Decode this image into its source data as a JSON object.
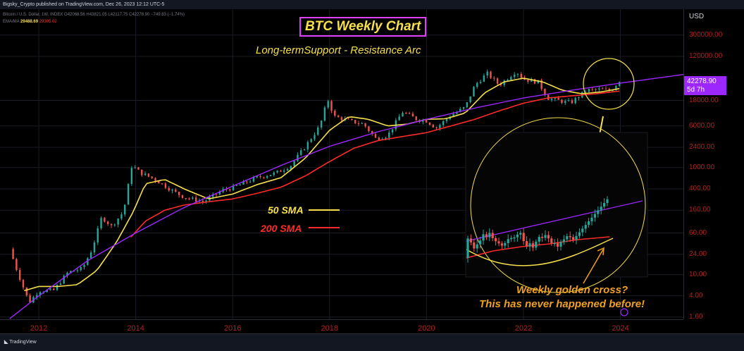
{
  "header": {
    "publish_line": "Bigsky_Crypto published on TradingView.com, Dec 26, 2023 12:12 UTC-5",
    "symbol_line": "Bitcoin / U.S. Dollar, 1W, INDEX  O42068.56  H43821.05  L42117.75  C42278.90  −749.83 (−1.74%)",
    "ema_label": "EMA/MA",
    "ema_value1": "29488.69",
    "ema_value2": "29305.02"
  },
  "axis": {
    "currency_label": "USD",
    "y_ticks": [
      "300000.00",
      "120000.00",
      "18000.00",
      "6000.00",
      "2400.00",
      "1000.00",
      "400.00",
      "160.00",
      "60.00",
      "24.00",
      "10.00",
      "4.00",
      "1.60"
    ],
    "x_ticks": [
      "2012",
      "2014",
      "2016",
      "2018",
      "2020",
      "2022",
      "2024"
    ]
  },
  "price_tag": {
    "price": "42278.90",
    "countdown": "5d 7h"
  },
  "annotations": {
    "title": "BTC Weekly Chart",
    "subtitle": "Long-termSupport - Resistance Arc",
    "sma50_label": "50 SMA",
    "sma200_label": "200 SMA",
    "note_line1": "Weekly golden cross?",
    "note_line2": "This has never happened before!"
  },
  "footer": {
    "brand": "TradingView"
  },
  "colors": {
    "background": "#000000",
    "sma50": "#f7e04b",
    "sma200": "#ff2a2a",
    "arc_line": "#9c27ff",
    "title_border": "#e040fb",
    "note": "#f0a020",
    "candle_up": "#26a69a",
    "candle_down": "#ef5350",
    "axis_text": "#b22222"
  },
  "chart_data": {
    "type": "line",
    "title": "BTC Weekly Chart",
    "subtitle": "Long-termSupport - Resistance Arc",
    "y_scale": "log",
    "ylim": [
      1.6,
      300000
    ],
    "xlim": [
      2011.2,
      2025.3
    ],
    "series": [
      {
        "name": "Price",
        "x": [
          2011.4,
          2011.55,
          2011.8,
          2012.0,
          2012.3,
          2012.6,
          2012.9,
          2013.1,
          2013.3,
          2013.5,
          2013.75,
          2013.92,
          2014.1,
          2014.4,
          2014.8,
          2015.0,
          2015.4,
          2015.8,
          2016.0,
          2016.5,
          2016.9,
          2017.2,
          2017.5,
          2017.8,
          2017.96,
          2018.1,
          2018.4,
          2018.7,
          2018.95,
          2019.2,
          2019.5,
          2019.8,
          2020.0,
          2020.2,
          2020.5,
          2020.8,
          2021.0,
          2021.25,
          2021.5,
          2021.85,
          2022.0,
          2022.3,
          2022.5,
          2022.9,
          2023.0,
          2023.3,
          2023.6,
          2023.8,
          2023.98
        ],
        "values": [
          30,
          12,
          3,
          5,
          5,
          11,
          13,
          30,
          120,
          80,
          150,
          1100,
          800,
          600,
          350,
          280,
          230,
          380,
          420,
          650,
          800,
          1100,
          2500,
          6000,
          19000,
          9000,
          7500,
          6500,
          3500,
          4000,
          11000,
          8000,
          7500,
          5500,
          9500,
          13500,
          35000,
          58000,
          35000,
          64000,
          45000,
          40000,
          20000,
          16500,
          17000,
          28000,
          29000,
          27000,
          42278.9
        ]
      },
      {
        "name": "50 SMA",
        "x": [
          2011.7,
          2012.0,
          2012.4,
          2012.8,
          2013.2,
          2013.6,
          2013.95,
          2014.2,
          2014.6,
          2015.0,
          2015.5,
          2016.0,
          2016.5,
          2017.0,
          2017.5,
          2018.0,
          2018.4,
          2018.8,
          2019.2,
          2019.6,
          2020.0,
          2020.4,
          2020.8,
          2021.2,
          2021.6,
          2022.0,
          2022.4,
          2022.8,
          2023.2,
          2023.6,
          2023.98
        ],
        "values": [
          5,
          6,
          6,
          6.5,
          12,
          40,
          150,
          500,
          600,
          400,
          260,
          320,
          480,
          650,
          1500,
          5000,
          9000,
          8000,
          6000,
          6500,
          8000,
          8200,
          10500,
          25000,
          40000,
          47000,
          40000,
          28000,
          24000,
          26000,
          30000
        ]
      },
      {
        "name": "200 SMA",
        "x": [
          2013.9,
          2014.2,
          2014.6,
          2015.0,
          2015.5,
          2016.0,
          2016.5,
          2017.0,
          2017.5,
          2018.0,
          2018.5,
          2019.0,
          2019.5,
          2020.0,
          2020.5,
          2021.0,
          2021.5,
          2022.0,
          2022.5,
          2023.0,
          2023.5,
          2023.98
        ],
        "values": [
          50,
          100,
          160,
          200,
          230,
          260,
          330,
          430,
          700,
          1300,
          2300,
          3200,
          3800,
          4500,
          6000,
          8000,
          11500,
          16000,
          20000,
          22000,
          24000,
          27000
        ]
      },
      {
        "name": "Long-term Support - Resistance Arc",
        "x": [
          2011.4,
          2012.0,
          2013.0,
          2014.0,
          2015.0,
          2016.0,
          2017.0,
          2018.0,
          2019.0,
          2020.0,
          2021.0,
          2022.0,
          2023.0,
          2024.0,
          2025.3
        ],
        "values": [
          1.5,
          4,
          18,
          60,
          180,
          450,
          1100,
          2500,
          4700,
          8000,
          13000,
          20000,
          28000,
          38000,
          55000
        ]
      }
    ]
  }
}
